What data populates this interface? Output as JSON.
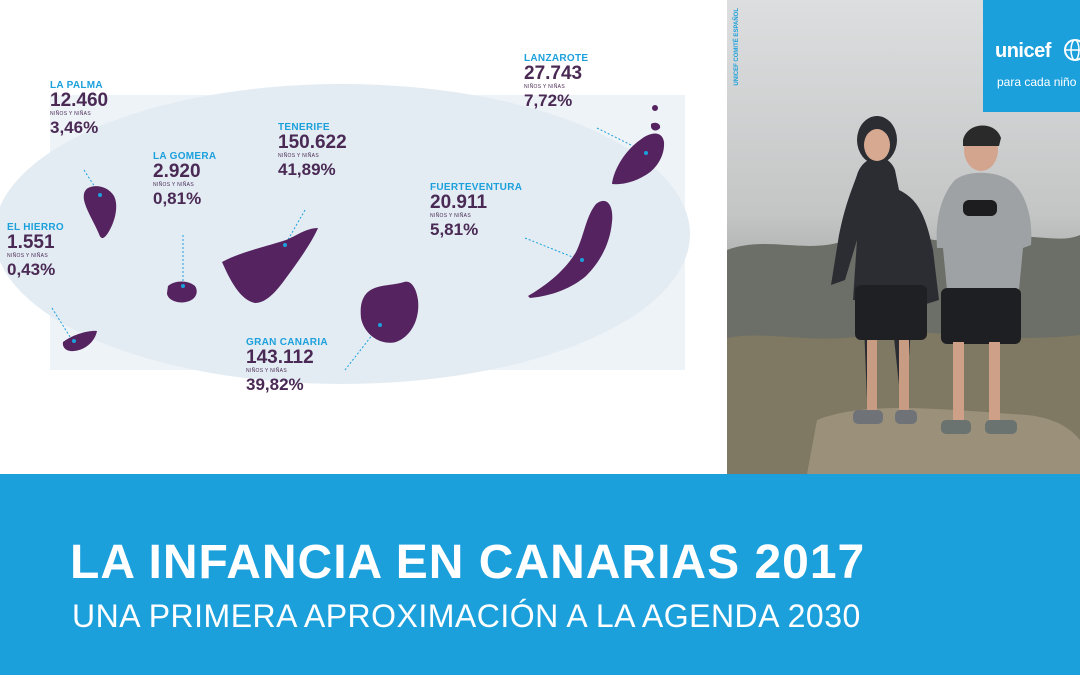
{
  "map": {
    "islands": [
      {
        "id": "la-palma",
        "name": "LA PALMA",
        "children": "12.460",
        "unit": "NIÑOS Y NIÑAS",
        "percent": "3,46%"
      },
      {
        "id": "la-gomera",
        "name": "LA GOMERA",
        "children": "2.920",
        "unit": "NIÑOS Y NIÑAS",
        "percent": "0,81%"
      },
      {
        "id": "el-hierro",
        "name": "EL HIERRO",
        "children": "1.551",
        "unit": "NIÑOS Y NIÑAS",
        "percent": "0,43%"
      },
      {
        "id": "tenerife",
        "name": "TENERIFE",
        "children": "150.622",
        "unit": "NIÑOS Y NIÑAS",
        "percent": "41,89%"
      },
      {
        "id": "gran-canaria",
        "name": "GRAN CANARIA",
        "children": "143.112",
        "unit": "NIÑOS Y NIÑAS",
        "percent": "39,82%"
      },
      {
        "id": "fuerteventura",
        "name": "FUERTEVENTURA",
        "children": "20.911",
        "unit": "NIÑOS Y NIÑAS",
        "percent": "5,81%"
      },
      {
        "id": "lanzarote",
        "name": "LANZAROTE",
        "children": "27.743",
        "unit": "NIÑOS Y NIÑAS",
        "percent": "7,72%"
      }
    ],
    "colors": {
      "island": "#55235f",
      "ellipse": "#e6eef4",
      "label": "#1ca0dc",
      "value": "#4a2a55"
    }
  },
  "photo": {
    "credit": "UNICEF COMITÉ ESPAÑOL",
    "brand": {
      "name": "unicef",
      "tagline": "para cada niño",
      "icon": "unicef-globe-icon"
    }
  },
  "banner": {
    "title": "LA INFANCIA EN CANARIAS 2017",
    "subtitle": "UNA PRIMERA APROXIMACIÓN A LA AGENDA 2030",
    "background": "#1ca0dc"
  }
}
